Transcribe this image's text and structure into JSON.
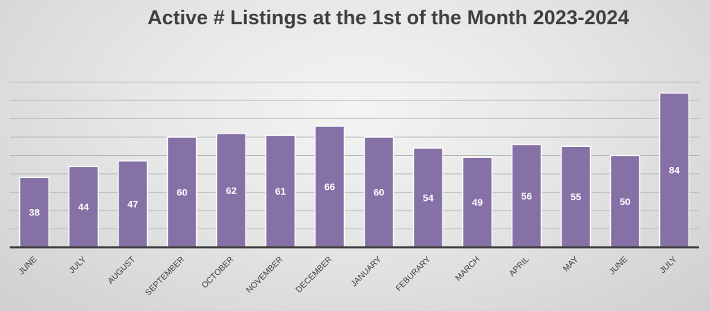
{
  "chart_data": {
    "type": "bar",
    "title": "Active # Listings at the 1st of the Month 2023-2024",
    "xlabel": "",
    "ylabel": "",
    "categories": [
      "JUNE",
      "JULY",
      "AUGUST",
      "SEPTEMBER",
      "OCTOBER",
      "NOVEMBER",
      "DECEMBER",
      "JANUARY",
      "FEBURARY",
      "MARCH",
      "APRIL",
      "MAY",
      "JUNE",
      "JULY"
    ],
    "values": [
      38,
      44,
      47,
      60,
      62,
      61,
      66,
      60,
      54,
      49,
      56,
      55,
      50,
      84
    ],
    "ylim": [
      0,
      90
    ],
    "grid": true,
    "legend": "none",
    "colors": {
      "bar": "#8571a6",
      "label": "#ffffff",
      "axis": "#3f3f3f",
      "grid": "#b3b3b3"
    }
  }
}
